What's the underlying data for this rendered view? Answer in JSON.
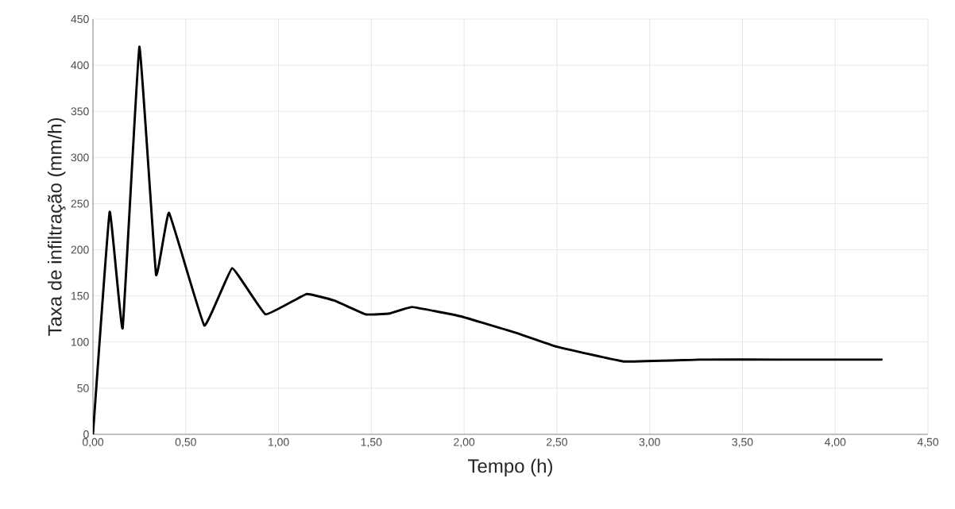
{
  "chart_data": {
    "type": "line",
    "xlabel": "Tempo (h)",
    "ylabel": "Taxa de infiltração (mm/h)",
    "x": [
      0,
      0.09,
      0.16,
      0.25,
      0.34,
      0.41,
      0.6,
      0.75,
      0.93,
      1.15,
      1.3,
      1.47,
      1.6,
      1.72,
      1.98,
      2.28,
      2.5,
      2.86,
      3.27,
      3.7,
      4.25
    ],
    "series": [
      {
        "color": "#000000",
        "values": [
          0,
          241,
          115,
          420,
          173,
          240,
          118,
          180,
          130,
          152,
          145,
          130,
          131,
          138,
          128,
          110,
          95,
          79,
          81,
          81,
          81
        ]
      }
    ],
    "xlim": [
      0,
      4.5
    ],
    "ylim": [
      0,
      450
    ],
    "xticks": [
      {
        "value": 0,
        "label": "0,00"
      },
      {
        "value": 0.5,
        "label": "0,50"
      },
      {
        "value": 1,
        "label": "1,00"
      },
      {
        "value": 1.5,
        "label": "1,50"
      },
      {
        "value": 2,
        "label": "2,00"
      },
      {
        "value": 2.5,
        "label": "2,50"
      },
      {
        "value": 3,
        "label": "3,00"
      },
      {
        "value": 3.5,
        "label": "3,50"
      },
      {
        "value": 4,
        "label": "4,00"
      },
      {
        "value": 4.5,
        "label": "4,50"
      }
    ],
    "yticks": [
      0,
      50,
      100,
      150,
      200,
      250,
      300,
      350,
      400,
      450
    ],
    "grid": true,
    "marker": "none",
    "line_style": "solid"
  }
}
